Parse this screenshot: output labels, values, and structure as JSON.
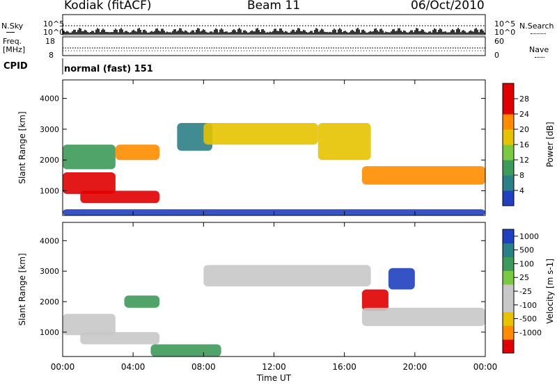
{
  "header": {
    "station": "Kodiak (fitACF)",
    "beam": "Beam 11",
    "date": "06/Oct/2010"
  },
  "side_labels": {
    "nsky": "N.Sky",
    "nsearch": "N.Search",
    "freq_line1": "Freq.",
    "freq_line2": "[MHz]",
    "nave": "Nave",
    "cpid": "CPID",
    "cpid_value": "normal (fast) 151"
  },
  "strip_ticks": {
    "noise_left": [
      "10^5",
      "10^0"
    ],
    "noise_right": [
      "10^5",
      "10^0"
    ],
    "freq_left": [
      "18",
      "8"
    ],
    "nave_right": [
      "60",
      "0"
    ]
  },
  "x_axis": {
    "label": "Time UT",
    "ticks": [
      "00:00",
      "04:00",
      "08:00",
      "12:00",
      "16:00",
      "20:00",
      "00:00"
    ]
  },
  "y_axis": {
    "label": "Slant Range [km]",
    "ticks": [
      "1000",
      "2000",
      "3000",
      "4000"
    ]
  },
  "colors": {
    "red": "#e00000",
    "orange": "#ff8c00",
    "yellow": "#e6c200",
    "lgreen": "#7ac943",
    "green": "#3d9a5a",
    "teal": "#2b7f86",
    "blue": "#2040c0",
    "gray": "#c8c8c8"
  },
  "chart_data": [
    {
      "type": "heatmap",
      "title": "Power",
      "ylabel": "Slant Range [km]",
      "xlabel": "Time UT",
      "ylim": [
        200,
        4600
      ],
      "xlim": [
        0,
        24
      ],
      "colorbar": {
        "label": "Power [dB]",
        "ticks": [
          "4",
          "8",
          "12",
          "16",
          "20",
          "24",
          "28"
        ]
      },
      "regions": [
        {
          "t": [
            0.0,
            3.0
          ],
          "range": [
            900,
            1600
          ],
          "level": "red"
        },
        {
          "t": [
            0.0,
            3.0
          ],
          "range": [
            1700,
            2500
          ],
          "level": "green"
        },
        {
          "t": [
            3.0,
            5.5
          ],
          "range": [
            2000,
            2500
          ],
          "level": "orange"
        },
        {
          "t": [
            1.0,
            5.5
          ],
          "range": [
            600,
            1000
          ],
          "level": "red"
        },
        {
          "t": [
            6.5,
            8.5
          ],
          "range": [
            2300,
            3200
          ],
          "level": "teal"
        },
        {
          "t": [
            8.0,
            14.5
          ],
          "range": [
            2500,
            3200
          ],
          "level": "yellow"
        },
        {
          "t": [
            14.5,
            17.5
          ],
          "range": [
            2000,
            3200
          ],
          "level": "yellow"
        },
        {
          "t": [
            17.0,
            24.0
          ],
          "range": [
            1200,
            1800
          ],
          "level": "orange"
        },
        {
          "t": [
            0.0,
            24.0
          ],
          "range": [
            200,
            400
          ],
          "level": "blue"
        }
      ]
    },
    {
      "type": "heatmap",
      "title": "Velocity",
      "ylabel": "Slant Range [km]",
      "xlabel": "Time UT",
      "ylim": [
        200,
        4600
      ],
      "xlim": [
        0,
        24
      ],
      "colorbar": {
        "label": "Velocity [m s-1]",
        "ticks": [
          "1000",
          "500",
          "100",
          "25",
          "-25",
          "-100",
          "-500",
          "-1000"
        ]
      },
      "regions": [
        {
          "t": [
            0.0,
            3.0
          ],
          "range": [
            900,
            1600
          ],
          "level": "gray"
        },
        {
          "t": [
            1.0,
            5.5
          ],
          "range": [
            600,
            1000
          ],
          "level": "gray"
        },
        {
          "t": [
            3.5,
            5.5
          ],
          "range": [
            1800,
            2200
          ],
          "level": "green"
        },
        {
          "t": [
            8.0,
            17.5
          ],
          "range": [
            2500,
            3200
          ],
          "level": "gray"
        },
        {
          "t": [
            17.0,
            18.5
          ],
          "range": [
            1700,
            2400
          ],
          "level": "red"
        },
        {
          "t": [
            17.0,
            24.0
          ],
          "range": [
            1200,
            1800
          ],
          "level": "gray"
        },
        {
          "t": [
            18.5,
            20.0
          ],
          "range": [
            2400,
            3100
          ],
          "level": "blue"
        },
        {
          "t": [
            5.0,
            9.0
          ],
          "range": [
            200,
            600
          ],
          "level": "green"
        }
      ]
    }
  ]
}
